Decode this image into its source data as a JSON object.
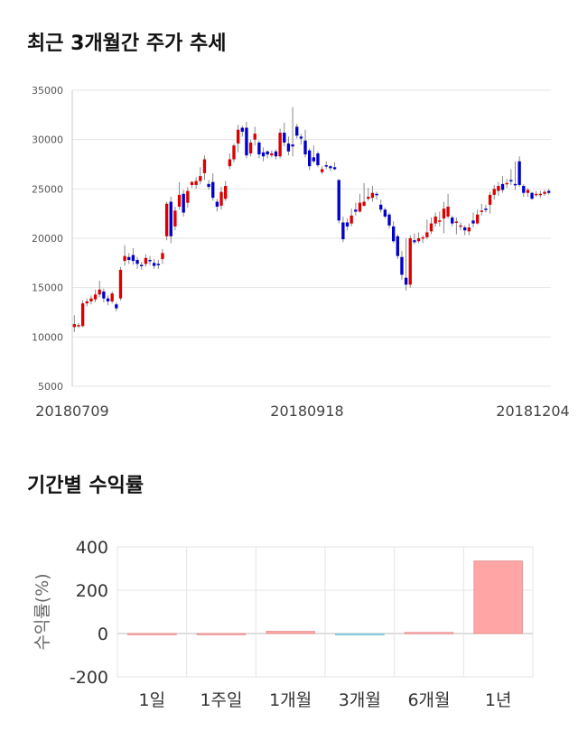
{
  "price_section": {
    "title": "최근 3개월간 주가 추세"
  },
  "returns_section": {
    "title": "기간별 수익률"
  },
  "colors": {
    "up": "#dd0000",
    "down": "#0000cc",
    "grid": "#e5e5e5",
    "bar_positive": "#ffa5a5",
    "bar_negative": "#a5d8e8"
  },
  "chart_data": [
    {
      "type": "candlestick",
      "title": "최근 3개월간 주가 추세",
      "ylim": [
        5000,
        35000
      ],
      "y_ticks": [
        5000,
        10000,
        15000,
        20000,
        25000,
        30000,
        35000
      ],
      "x_tick_labels": [
        "20180709",
        "20180918",
        "20181204"
      ],
      "grid": true,
      "candles": [
        [
          11000,
          11300,
          10500,
          12200
        ],
        [
          11100,
          11200,
          10900,
          11400
        ],
        [
          11100,
          13400,
          11000,
          13700
        ],
        [
          13400,
          13600,
          13100,
          13900
        ],
        [
          13600,
          13900,
          13300,
          14200
        ],
        [
          13800,
          14300,
          13500,
          14800
        ],
        [
          14300,
          14800,
          14000,
          15700
        ],
        [
          14600,
          13900,
          13500,
          14900
        ],
        [
          13900,
          13600,
          13200,
          14200
        ],
        [
          13600,
          14400,
          13400,
          14600
        ],
        [
          13300,
          12900,
          12600,
          13500
        ],
        [
          13900,
          16800,
          13700,
          17100
        ],
        [
          17700,
          18200,
          17200,
          19300
        ],
        [
          18100,
          17800,
          17400,
          18500
        ],
        [
          18300,
          17700,
          17300,
          19000
        ],
        [
          17800,
          17400,
          16900,
          18100
        ],
        [
          17300,
          17200,
          16800,
          17600
        ],
        [
          17400,
          18000,
          17100,
          18400
        ],
        [
          17800,
          17700,
          17300,
          18200
        ],
        [
          17500,
          17200,
          16900,
          17900
        ],
        [
          17400,
          17300,
          16900,
          17800
        ],
        [
          17900,
          18500,
          17400,
          18900
        ],
        [
          20200,
          23500,
          19800,
          23700
        ],
        [
          23700,
          20200,
          19500,
          24200
        ],
        [
          21200,
          22800,
          20800,
          23200
        ],
        [
          23200,
          24400,
          22900,
          25700
        ],
        [
          24500,
          22600,
          22200,
          24900
        ],
        [
          23600,
          24800,
          23100,
          25200
        ],
        [
          25400,
          25700,
          25100,
          25800
        ],
        [
          25400,
          25800,
          25000,
          26200
        ],
        [
          25800,
          26300,
          25500,
          27200
        ],
        [
          26600,
          28000,
          25900,
          28400
        ],
        [
          25500,
          25200,
          24900,
          25900
        ],
        [
          25700,
          24100,
          23800,
          26600
        ],
        [
          23700,
          23200,
          22700,
          24000
        ],
        [
          23300,
          24700,
          22900,
          25200
        ],
        [
          24000,
          25300,
          23800,
          25800
        ],
        [
          27300,
          28000,
          27000,
          28600
        ],
        [
          28000,
          29400,
          27700,
          29600
        ],
        [
          29600,
          31000,
          28700,
          31500
        ],
        [
          31200,
          30800,
          30300,
          31400
        ],
        [
          31200,
          28400,
          28100,
          31800
        ],
        [
          28600,
          29700,
          28300,
          30000
        ],
        [
          30000,
          30600,
          29400,
          31300
        ],
        [
          29700,
          28500,
          28100,
          29900
        ],
        [
          28700,
          28300,
          27800,
          29200
        ],
        [
          28800,
          28500,
          28100,
          28900
        ],
        [
          28400,
          28600,
          28200,
          28900
        ],
        [
          28800,
          28300,
          28000,
          29000
        ],
        [
          28300,
          30700,
          28100,
          31100
        ],
        [
          30700,
          29700,
          29300,
          31700
        ],
        [
          29600,
          28800,
          28400,
          30300
        ],
        [
          29500,
          29300,
          28300,
          33300
        ],
        [
          31300,
          30400,
          30100,
          31600
        ],
        [
          30300,
          30100,
          29500,
          30600
        ],
        [
          29900,
          28500,
          28200,
          31000
        ],
        [
          28900,
          27300,
          26900,
          29100
        ],
        [
          28200,
          27800,
          27600,
          29400
        ],
        [
          28600,
          27400,
          27200,
          28800
        ],
        [
          26700,
          27000,
          26500,
          27300
        ],
        [
          27400,
          27300,
          27000,
          27800
        ],
        [
          27300,
          27100,
          26800,
          27400
        ],
        [
          27200,
          27000,
          26900,
          27700
        ],
        [
          25900,
          21800,
          21500,
          26000
        ],
        [
          21600,
          19900,
          19600,
          22200
        ],
        [
          21600,
          21200,
          20800,
          22000
        ],
        [
          21500,
          22300,
          21200,
          23000
        ],
        [
          22900,
          22700,
          22300,
          23600
        ],
        [
          22700,
          23600,
          22600,
          24500
        ],
        [
          23300,
          23700,
          23200,
          25600
        ],
        [
          24000,
          24200,
          23800,
          25100
        ],
        [
          24100,
          24600,
          23700,
          25300
        ],
        [
          24500,
          24400,
          23900,
          24700
        ],
        [
          23400,
          22900,
          22600,
          23900
        ],
        [
          22900,
          22200,
          22000,
          23100
        ],
        [
          22400,
          21300,
          21000,
          22600
        ],
        [
          21200,
          19700,
          19500,
          21700
        ],
        [
          20200,
          18200,
          17900,
          20400
        ],
        [
          18100,
          16300,
          15800,
          18700
        ],
        [
          16000,
          15300,
          14700,
          20000
        ],
        [
          15300,
          20000,
          15000,
          20300
        ],
        [
          19800,
          19600,
          19400,
          20500
        ],
        [
          19700,
          20000,
          19500,
          20600
        ],
        [
          20000,
          20100,
          19500,
          20300
        ],
        [
          20100,
          20600,
          19900,
          21900
        ],
        [
          20700,
          21500,
          20400,
          22100
        ],
        [
          21500,
          22200,
          21200,
          22600
        ],
        [
          21700,
          21800,
          21200,
          22700
        ],
        [
          22000,
          23000,
          20500,
          23700
        ],
        [
          22200,
          23200,
          22000,
          24500
        ],
        [
          22100,
          21500,
          21200,
          22300
        ],
        [
          21600,
          21700,
          20400,
          22100
        ],
        [
          21300,
          21300,
          20800,
          21600
        ],
        [
          21100,
          20800,
          20300,
          21300
        ],
        [
          20700,
          21100,
          20300,
          21500
        ],
        [
          21800,
          21500,
          21100,
          22600
        ],
        [
          21500,
          22400,
          21400,
          22900
        ],
        [
          22700,
          22800,
          22300,
          23500
        ],
        [
          23000,
          22900,
          22600,
          23400
        ],
        [
          23400,
          24400,
          22500,
          24700
        ],
        [
          24400,
          25000,
          23900,
          25400
        ],
        [
          24800,
          25300,
          24300,
          25700
        ],
        [
          25500,
          24900,
          24600,
          26300
        ],
        [
          25500,
          25600,
          25100,
          26000
        ],
        [
          25900,
          25800,
          25400,
          27000
        ],
        [
          25500,
          25400,
          24900,
          27800
        ],
        [
          27800,
          25400,
          25200,
          28300
        ],
        [
          25300,
          24600,
          24200,
          25500
        ],
        [
          24600,
          24900,
          24200,
          25100
        ],
        [
          24600,
          24000,
          23900,
          24700
        ],
        [
          24500,
          24500,
          24200,
          24800
        ],
        [
          24400,
          24500,
          24100,
          24800
        ],
        [
          24500,
          24700,
          24300,
          24900
        ],
        [
          24800,
          24600,
          24400,
          25000
        ]
      ]
    },
    {
      "type": "bar",
      "categories": [
        "1일",
        "1주일",
        "1개월",
        "3개월",
        "6개월",
        "1년"
      ],
      "values": [
        0.5,
        0.5,
        10,
        -7,
        5,
        335
      ],
      "ylabel": "수익률(%)",
      "ylim": [
        -200,
        400
      ],
      "y_ticks": [
        -200,
        0,
        200,
        400
      ],
      "grid": true
    }
  ]
}
